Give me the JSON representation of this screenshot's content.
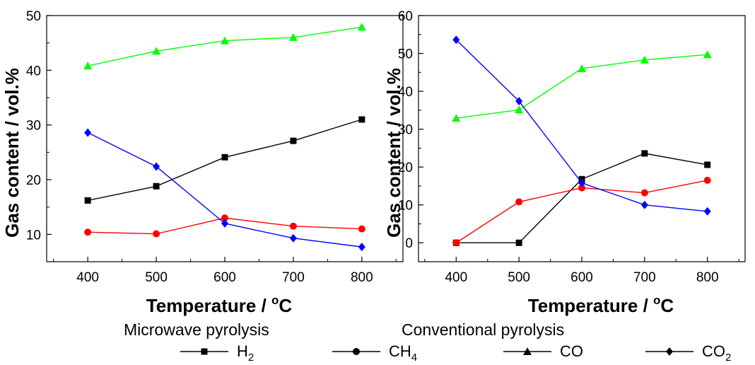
{
  "colors": {
    "H2": "#000000",
    "CH4": "#ff0000",
    "CO": "#00ff00",
    "CO2": "#0000ff"
  },
  "legend": [
    {
      "key": "H2",
      "base": "H",
      "sub": "2",
      "marker": "square"
    },
    {
      "key": "CH4",
      "base": "CH",
      "sub": "4",
      "marker": "circle"
    },
    {
      "key": "CO",
      "base": "CO",
      "sub": "",
      "marker": "triangle"
    },
    {
      "key": "CO2",
      "base": "CO",
      "sub": "2",
      "marker": "diamond"
    }
  ],
  "chart_data": [
    {
      "type": "line",
      "caption": "Microwave pyrolysis",
      "xlabel": {
        "main": "Temperature / ",
        "sup": "o",
        "unit": "C"
      },
      "ylabel": "Gas content / vol.%",
      "x": [
        400,
        500,
        600,
        700,
        800
      ],
      "xticks": [
        400,
        500,
        600,
        700,
        800
      ],
      "xlim": [
        340,
        860
      ],
      "ylim": [
        5,
        50
      ],
      "yticks": [
        10,
        20,
        30,
        40,
        50
      ],
      "series": [
        {
          "name": "H2",
          "marker": "square",
          "values": [
            16.2,
            18.8,
            24.1,
            27.1,
            31.0
          ]
        },
        {
          "name": "CH4",
          "marker": "circle",
          "values": [
            10.4,
            10.1,
            13.0,
            11.5,
            11.0
          ]
        },
        {
          "name": "CO",
          "marker": "triangle",
          "values": [
            40.8,
            43.5,
            45.4,
            46.0,
            47.9
          ]
        },
        {
          "name": "CO2",
          "marker": "diamond",
          "values": [
            28.6,
            22.4,
            12.0,
            9.3,
            7.7
          ]
        }
      ]
    },
    {
      "type": "line",
      "caption": "Conventional pyrolysis",
      "xlabel": {
        "main": "Temperature / ",
        "sup": "o",
        "unit": "C"
      },
      "ylabel": "Gas content / vol.%",
      "x": [
        400,
        500,
        600,
        700,
        800
      ],
      "xticks": [
        400,
        500,
        600,
        700,
        800
      ],
      "xlim": [
        340,
        860
      ],
      "ylim": [
        -5,
        60
      ],
      "yticks": [
        0,
        10,
        20,
        30,
        40,
        50,
        60
      ],
      "series": [
        {
          "name": "H2",
          "marker": "square",
          "values": [
            0,
            0,
            16.8,
            23.6,
            20.6
          ]
        },
        {
          "name": "CH4",
          "marker": "circle",
          "values": [
            0,
            10.8,
            14.5,
            13.2,
            16.5
          ]
        },
        {
          "name": "CO",
          "marker": "triangle",
          "values": [
            32.9,
            35.1,
            46.0,
            48.3,
            49.7
          ]
        },
        {
          "name": "CO2",
          "marker": "diamond",
          "values": [
            53.6,
            37.4,
            15.8,
            10.0,
            8.3
          ]
        }
      ]
    }
  ]
}
